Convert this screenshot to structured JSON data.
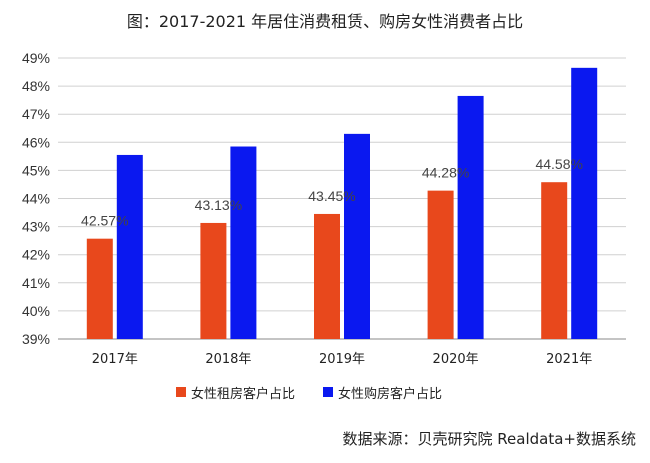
{
  "title": "图：2017-2021 年居住消费租赁、购房女性消费者占比",
  "source": "数据来源：贝壳研究院 Realdata+数据系统",
  "chart_data": {
    "type": "bar",
    "title": "图：2017-2021 年居住消费租赁、购房女性消费者占比",
    "categories": [
      "2017年",
      "2018年",
      "2019年",
      "2020年",
      "2021年"
    ],
    "series": [
      {
        "name": "女性租房客户占比",
        "values": [
          42.57,
          43.13,
          43.45,
          44.28,
          44.58
        ],
        "color": "#e8481c",
        "data_labels": [
          "42.57%",
          "43.13%",
          "43.45%",
          "44.28%",
          "44.58%"
        ]
      },
      {
        "name": "女性购房客户占比",
        "values": [
          45.55,
          45.85,
          46.3,
          47.65,
          48.65
        ],
        "color": "#0a18f0"
      }
    ],
    "ylim": [
      39,
      49
    ],
    "yticks": [
      39,
      40,
      41,
      42,
      43,
      44,
      45,
      46,
      47,
      48,
      49
    ],
    "ytick_labels": [
      "39%",
      "40%",
      "41%",
      "42%",
      "43%",
      "44%",
      "45%",
      "46%",
      "47%",
      "48%",
      "49%"
    ],
    "grid": true,
    "legend_position": "bottom"
  }
}
